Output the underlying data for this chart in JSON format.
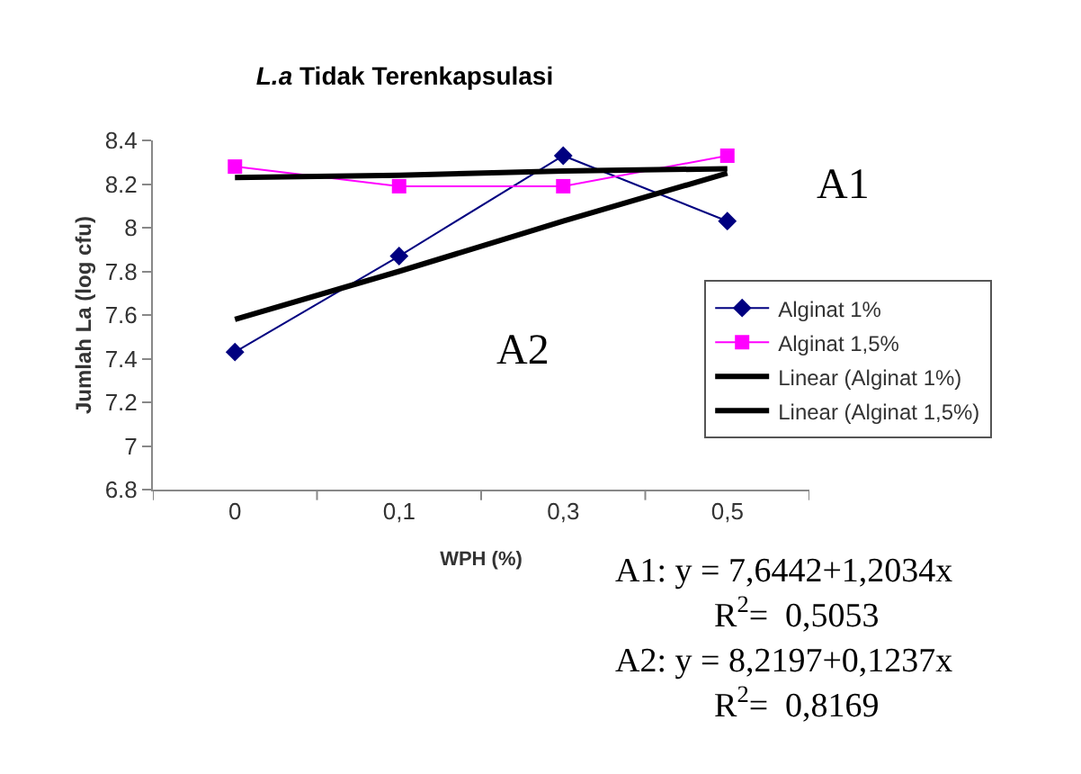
{
  "chart_data": {
    "type": "line",
    "title": "L.a Tidak Terenkapsulasi",
    "xlabel": "WPH (%)",
    "ylabel": "Jumlah La (log cfu)",
    "categories": [
      "0",
      "0,1",
      "0,3",
      "0,5"
    ],
    "series": [
      {
        "name": "Alginat 1%",
        "color": "#000080",
        "marker": "diamond",
        "values": [
          7.43,
          7.87,
          8.33,
          8.03
        ]
      },
      {
        "name": "Alginat 1,5%",
        "color": "#ff00ff",
        "marker": "square",
        "values": [
          8.28,
          8.19,
          8.19,
          8.33
        ]
      },
      {
        "name": "Linear (Alginat 1%)",
        "color": "#000000",
        "marker": "none",
        "values": [
          7.58,
          7.8,
          8.03,
          8.25
        ]
      },
      {
        "name": "Linear (Alginat 1,5%)",
        "color": "#000000",
        "marker": "none",
        "values": [
          8.23,
          8.24,
          8.26,
          8.27
        ]
      }
    ],
    "ylim": [
      6.8,
      8.4
    ],
    "yticks": [
      6.8,
      7,
      7.2,
      7.4,
      7.6,
      7.8,
      8,
      8.2,
      8.4
    ],
    "legend": "right",
    "annotations": [
      "A1",
      "A2",
      "A1: y = 7,6442+1,2034x",
      "R$^{2}$=  0,5053",
      "A2: y = 8,2197+0,1237x",
      "R$^{2}$=  0,8169"
    ]
  }
}
